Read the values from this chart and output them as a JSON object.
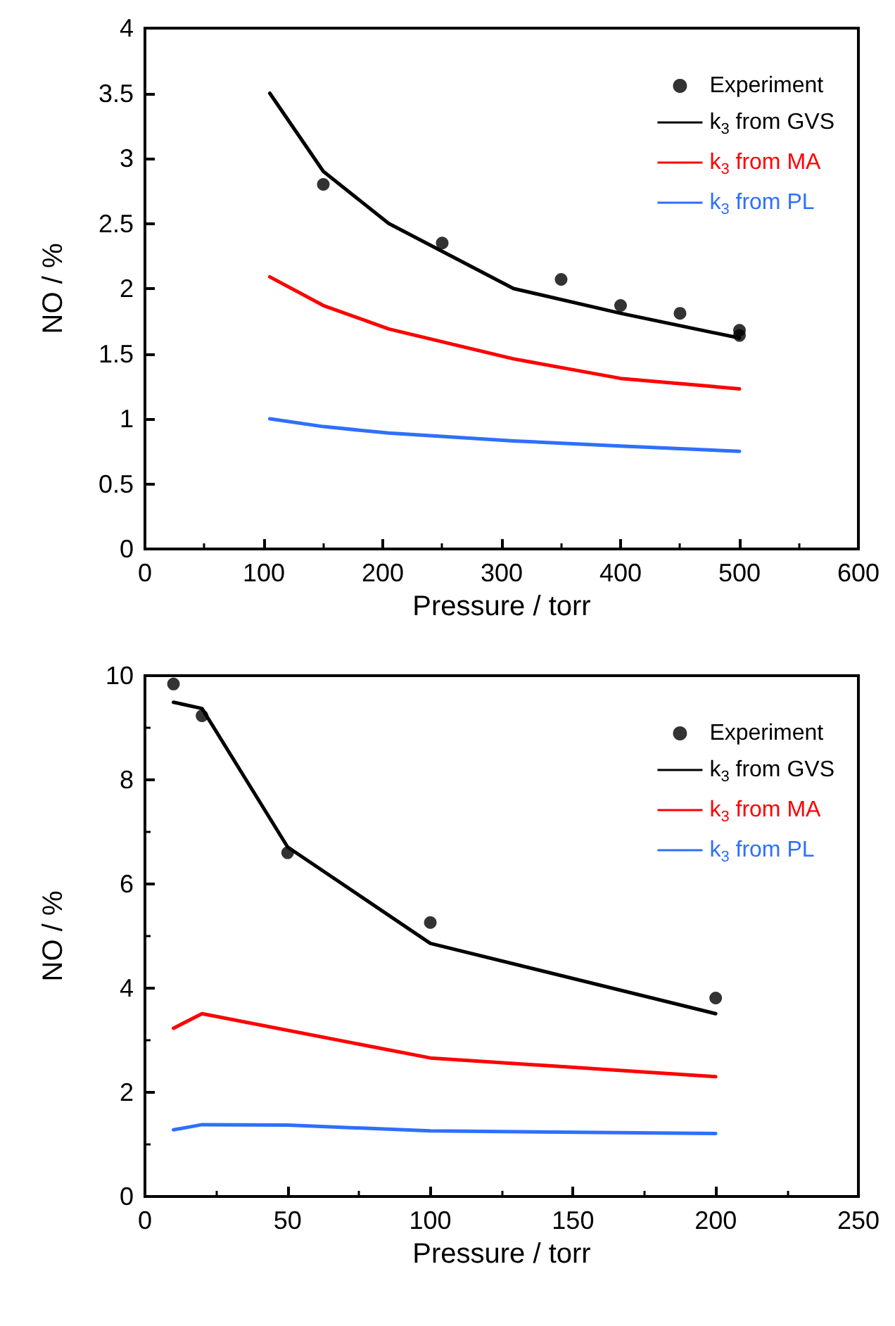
{
  "chart_data": [
    {
      "type": "line",
      "xlabel": "Pressure / torr",
      "ylabel": "NO / %",
      "xlim": [
        0,
        600
      ],
      "xticks": [
        0,
        100,
        200,
        300,
        400,
        500,
        600
      ],
      "ylim": [
        0,
        4
      ],
      "yticks": [
        0,
        0.5,
        1,
        1.5,
        2,
        2.5,
        3,
        3.5,
        4
      ],
      "grid": false,
      "legend": "top right",
      "line_style": "solid",
      "series": [
        {
          "name": "Experiment",
          "type": "scatter",
          "marker": "circle",
          "color": "#000000",
          "x": [
            150,
            250,
            350,
            400,
            450,
            500,
            500
          ],
          "values": [
            2.8,
            2.35,
            2.07,
            1.87,
            1.81,
            1.68,
            1.64
          ]
        },
        {
          "name": "k$_{3}$ from GVS",
          "marker": "none",
          "color": "#000000",
          "x": [
            105,
            150,
            205,
            310,
            400,
            500
          ],
          "values": [
            3.5,
            2.9,
            2.5,
            2.0,
            1.81,
            1.62
          ]
        },
        {
          "name": "k$_{3}$ from MA",
          "marker": "none",
          "color": "#ff0000",
          "x": [
            105,
            150,
            205,
            310,
            400,
            500
          ],
          "values": [
            2.09,
            1.87,
            1.69,
            1.46,
            1.31,
            1.23
          ]
        },
        {
          "name": "k$_{3}$ from PL",
          "marker": "none",
          "color": "#2f6fff",
          "x": [
            105,
            150,
            205,
            310,
            400,
            500
          ],
          "values": [
            1.0,
            0.94,
            0.89,
            0.83,
            0.79,
            0.75
          ]
        }
      ]
    },
    {
      "type": "line",
      "xlabel": "Pressure / torr",
      "ylabel": "NO / %",
      "xlim": [
        0,
        250
      ],
      "xticks": [
        0,
        50,
        100,
        150,
        200,
        250
      ],
      "ylim": [
        0,
        10
      ],
      "yticks": [
        0,
        2,
        4,
        6,
        8,
        10
      ],
      "grid": false,
      "legend": "top right",
      "line_style": "solid",
      "series": [
        {
          "name": "Experiment",
          "type": "scatter",
          "marker": "circle",
          "color": "#000000",
          "x": [
            10,
            20,
            50,
            100,
            200
          ],
          "values": [
            9.84,
            9.23,
            6.6,
            5.26,
            3.81
          ]
        },
        {
          "name": "k$_{3}$ from GVS",
          "marker": "none",
          "color": "#000000",
          "x": [
            10,
            20,
            50,
            100,
            200
          ],
          "values": [
            9.49,
            9.37,
            6.71,
            4.86,
            3.51
          ]
        },
        {
          "name": "k$_{3}$ from MA",
          "marker": "none",
          "color": "#ff0000",
          "x": [
            10,
            20,
            100,
            200
          ],
          "values": [
            3.23,
            3.51,
            2.66,
            2.3
          ]
        },
        {
          "name": "k$_{3}$ from PL",
          "marker": "none",
          "color": "#2f6fff",
          "x": [
            10,
            20,
            50,
            100,
            200
          ],
          "values": [
            1.28,
            1.38,
            1.37,
            1.26,
            1.21
          ]
        }
      ]
    }
  ]
}
